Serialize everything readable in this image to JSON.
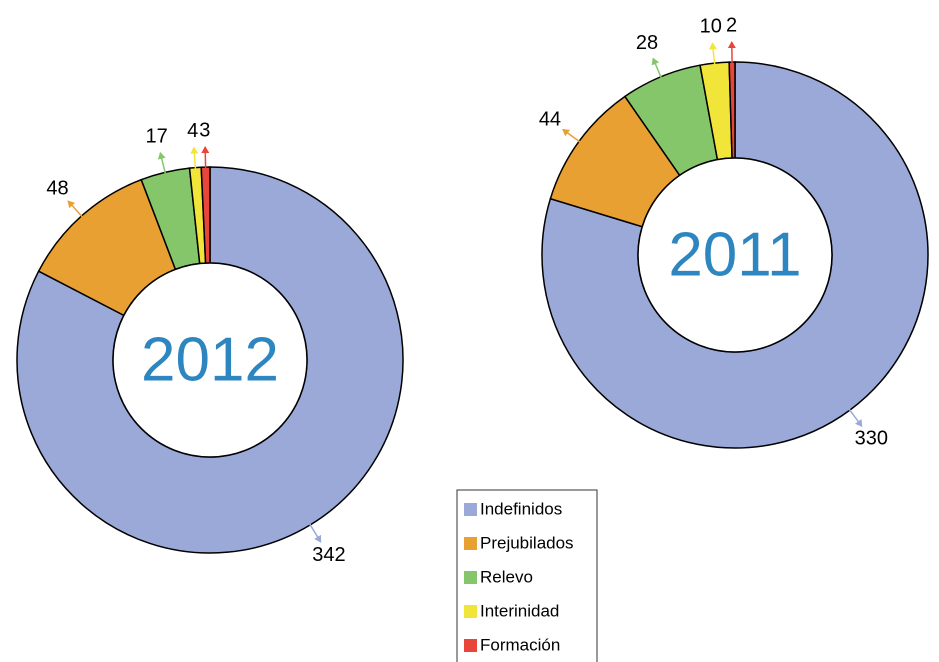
{
  "chart_data": [
    {
      "type": "donut",
      "title": "2012",
      "categories": [
        "Indefinidos",
        "Prejubilados",
        "Relevo",
        "Interinidad",
        "Formación"
      ],
      "values": [
        342,
        48,
        17,
        4,
        3
      ],
      "colors": [
        "#9aa9d8",
        "#e8a033",
        "#86c66a",
        "#f2e53a",
        "#e8463a"
      ]
    },
    {
      "type": "donut",
      "title": "2011",
      "categories": [
        "Indefinidos",
        "Prejubilados",
        "Relevo",
        "Interinidad",
        "Formación"
      ],
      "values": [
        330,
        44,
        28,
        10,
        2
      ],
      "colors": [
        "#9aa9d8",
        "#e8a033",
        "#86c66a",
        "#f2e53a",
        "#e8463a"
      ]
    }
  ]
}
